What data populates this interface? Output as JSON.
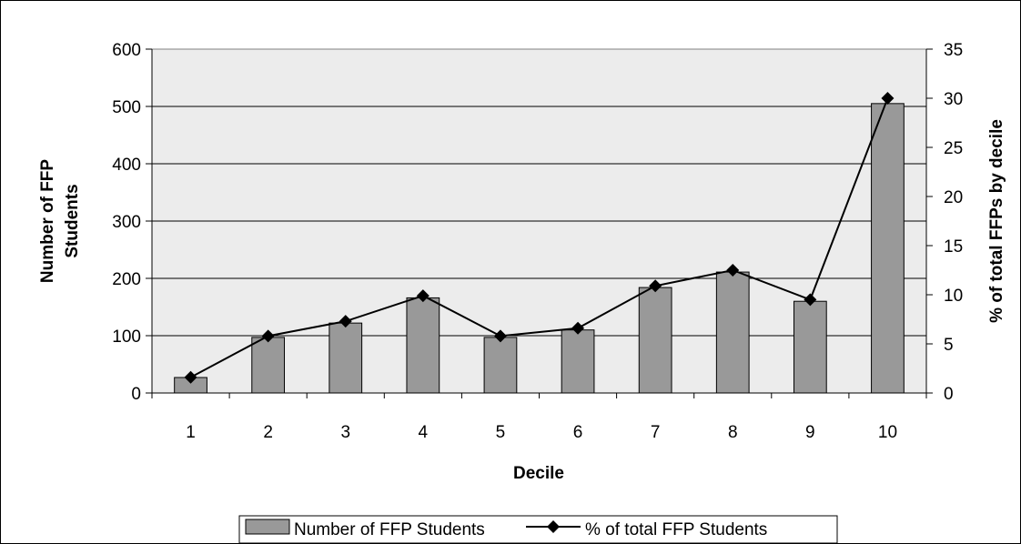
{
  "chart_data": {
    "type": "bar",
    "title": "",
    "xlabel": "Decile",
    "ylabel": "Number of FFP Students",
    "ylabel_lines": [
      "Number of FFP",
      "Students"
    ],
    "y2label": "% of total FFPs by decile",
    "categories": [
      "1",
      "2",
      "3",
      "4",
      "5",
      "6",
      "7",
      "8",
      "9",
      "10"
    ],
    "ylim": [
      0,
      600
    ],
    "y_ticks": [
      "0",
      "100",
      "200",
      "300",
      "400",
      "500",
      "600"
    ],
    "y2lim": [
      0,
      35
    ],
    "y2_ticks": [
      "0",
      "5",
      "10",
      "15",
      "20",
      "25",
      "30",
      "35"
    ],
    "grid": true,
    "legend_position": "bottom",
    "series": [
      {
        "name": "Number of FFP Students",
        "type": "bar",
        "axis": "left",
        "color": "#999999",
        "values": [
          27,
          97,
          122,
          166,
          97,
          110,
          184,
          211,
          160,
          505
        ]
      },
      {
        "name": "% of total FFP Students",
        "type": "line",
        "axis": "right",
        "color": "#000000",
        "marker": "diamond",
        "values": [
          1.6,
          5.8,
          7.3,
          9.9,
          5.8,
          6.6,
          10.9,
          12.5,
          9.5,
          30.0
        ]
      }
    ],
    "colors": {
      "plot_background": "#ececec",
      "bar_fill": "#999999",
      "line": "#000000"
    }
  }
}
